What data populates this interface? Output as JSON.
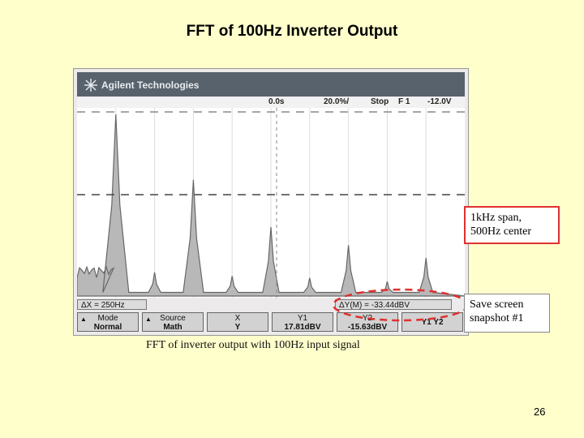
{
  "slide": {
    "title": "FFT of 100Hz Inverter Output",
    "caption": "FFT of inverter output with 100Hz input signal",
    "page_number": "26"
  },
  "scope": {
    "brand": "Agilent Technologies",
    "brand_icon": "sparkle-icon",
    "status": {
      "position": "0.0s",
      "scale": "20.0%/",
      "run_state": "Stop",
      "trigger": "F 1",
      "level": "-12.0V"
    },
    "info": {
      "delta_x": "ΔX = 250Hz",
      "delta_y": "ΔY(M) = -33.44dBV"
    },
    "softkeys": {
      "mode_label": "Mode",
      "mode_value": "Normal",
      "source_label": "Source",
      "source_value": "Math",
      "xy_label": "X",
      "xy_sub": "Y",
      "y1_label": "Y1",
      "y1_value": "17.81dBV",
      "y2_label": "Y2",
      "y2_value": "-15.63dBV",
      "y1y2_label": "Y1 Y2"
    },
    "colors": {
      "trace": "#777777",
      "trace_fill": "#b8b8b8",
      "grid": "#888888",
      "header": "#58626c"
    }
  },
  "annotations": {
    "span_note_line1": "1kHz span,",
    "span_note_line2": "500Hz center",
    "save_note_line1": "Save screen",
    "save_note_line2": "snapshot #1",
    "highlight_color": "#e03030"
  },
  "chart_data": {
    "type": "line",
    "x_range": [
      0,
      1000
    ],
    "peaks": [
      {
        "x": 100,
        "y": 1.0
      },
      {
        "x": 200,
        "y": 0.13
      },
      {
        "x": 300,
        "y": 0.64
      },
      {
        "x": 400,
        "y": 0.11
      },
      {
        "x": 500,
        "y": 0.38
      },
      {
        "x": 600,
        "y": 0.1
      },
      {
        "x": 700,
        "y": 0.28
      },
      {
        "x": 800,
        "y": 0.08
      },
      {
        "x": 900,
        "y": 0.21
      }
    ]
  }
}
